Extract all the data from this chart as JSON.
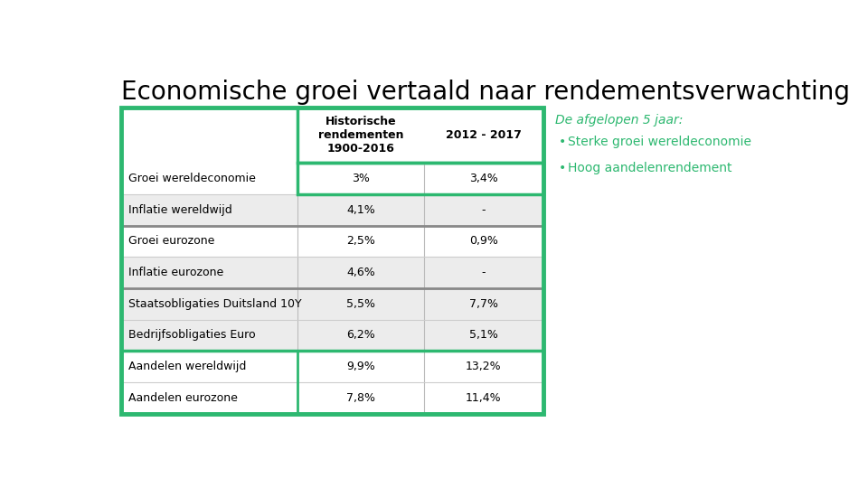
{
  "title": "Economische groei vertaald naar rendementsverwachting",
  "title_fontsize": 20,
  "background_color": "#ffffff",
  "green_color": "#2db870",
  "text_color": "#000000",
  "col_headers": [
    "Historische\nrendementen\n1900-2016",
    "2012 - 2017"
  ],
  "rows": [
    {
      "label": "Groei wereldeconomie",
      "hist": "3%",
      "recent": "3,4%",
      "highlight_data": true,
      "separator_above": false,
      "bg": "white"
    },
    {
      "label": "Inflatie wereldwijd",
      "hist": "4,1%",
      "recent": "-",
      "highlight_data": false,
      "separator_above": false,
      "bg": "light"
    },
    {
      "label": "Groei eurozone",
      "hist": "2,5%",
      "recent": "0,9%",
      "highlight_data": false,
      "separator_above": true,
      "bg": "white"
    },
    {
      "label": "Inflatie eurozone",
      "hist": "4,6%",
      "recent": "-",
      "highlight_data": false,
      "separator_above": false,
      "bg": "light"
    },
    {
      "label": "Staatsobligaties Duitsland 10Y",
      "hist": "5,5%",
      "recent": "7,7%",
      "highlight_data": false,
      "separator_above": true,
      "bg": "light"
    },
    {
      "label": "Bedrijfsobligaties Euro",
      "hist": "6,2%",
      "recent": "5,1%",
      "highlight_data": false,
      "separator_above": false,
      "bg": "light"
    },
    {
      "label": "Aandelen wereldwijd",
      "hist": "9,9%",
      "recent": "13,2%",
      "highlight_data": true,
      "separator_above": true,
      "bg": "white"
    },
    {
      "label": "Aandelen eurozone",
      "hist": "7,8%",
      "recent": "11,4%",
      "highlight_data": true,
      "separator_above": false,
      "bg": "white"
    }
  ],
  "side_text_title": "De afgelopen 5 jaar:",
  "side_bullets": [
    "Sterke groei wereldeconomie",
    "Hoog aandelenrendement"
  ]
}
